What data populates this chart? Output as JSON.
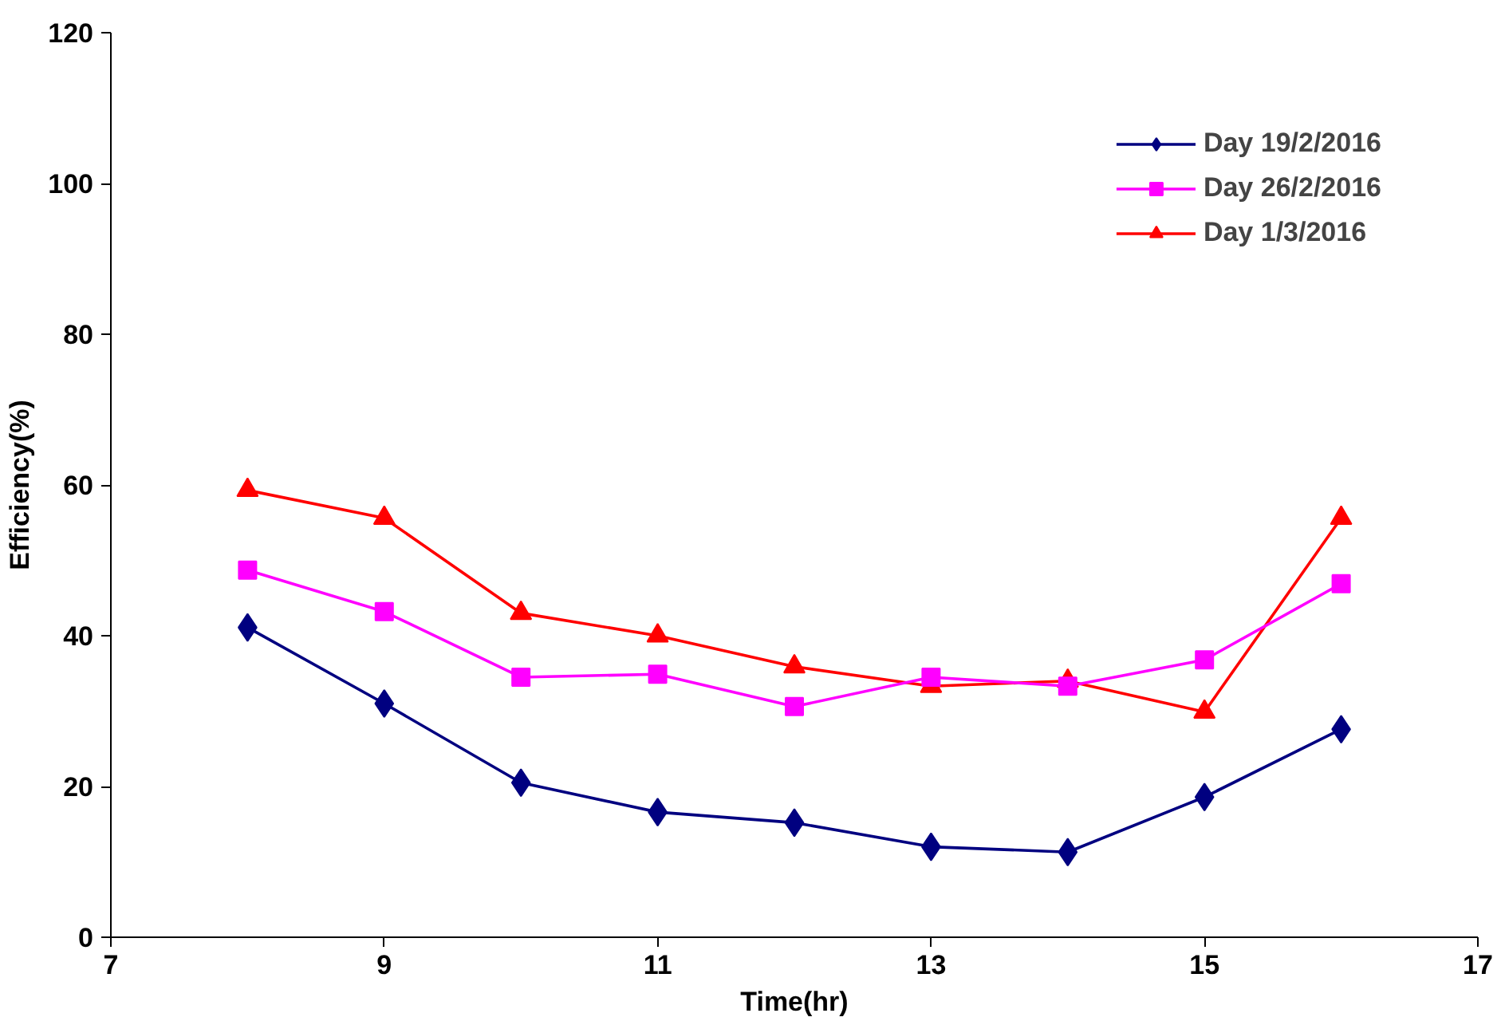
{
  "chart_data": {
    "type": "line",
    "xlabel": "Time(hr)",
    "ylabel": "Efficiency(%)",
    "xlim": [
      7,
      17
    ],
    "xticks": [
      7,
      9,
      11,
      13,
      15,
      17
    ],
    "ylim": [
      0,
      120
    ],
    "yticks": [
      0,
      20,
      40,
      60,
      80,
      100,
      120
    ],
    "x": [
      8,
      9,
      10,
      11,
      12,
      13,
      14,
      15,
      16
    ],
    "grid": false,
    "legend": "top right",
    "line_style": "solid",
    "series": [
      {
        "name": "Day 19/2/2016",
        "color": "#000080",
        "marker": "diamond",
        "values": [
          41.1,
          31.0,
          20.5,
          16.6,
          15.2,
          12.0,
          11.3,
          18.6,
          27.6
        ]
      },
      {
        "name": "Day 26/2/2016",
        "color": "#ff00ff",
        "marker": "square",
        "values": [
          48.7,
          43.2,
          34.5,
          34.9,
          30.6,
          34.5,
          33.3,
          36.8,
          46.9
        ]
      },
      {
        "name": "Day 1/3/2016",
        "color": "#ff0000",
        "marker": "triangle",
        "values": [
          59.3,
          55.6,
          43.0,
          40.0,
          35.9,
          33.3,
          34.0,
          29.9,
          55.6
        ]
      }
    ]
  }
}
